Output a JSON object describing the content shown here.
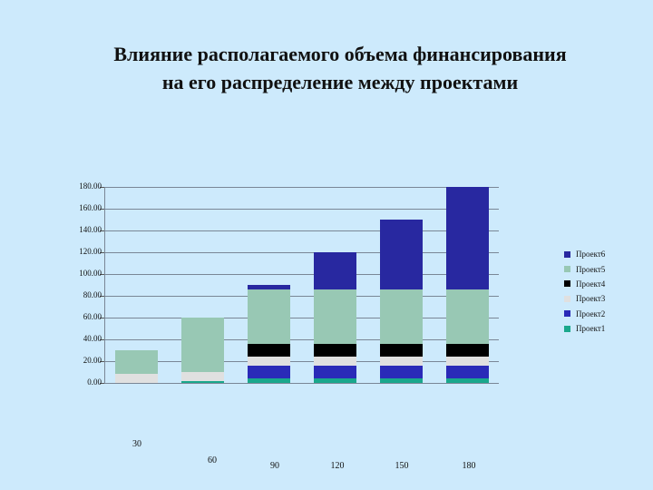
{
  "title_line1": "Влияние располагаемого объема финансирования",
  "title_line2": "на его распределение между проектами",
  "y_ticks": [
    "180.00",
    "160.00",
    "140.00",
    "120.00",
    "100.00",
    "80.00",
    "60.00",
    "40.00",
    "20.00",
    "0.00"
  ],
  "x_labels": [
    "30",
    "60",
    "90",
    "120",
    "150",
    "180"
  ],
  "legend": [
    {
      "label": "Проект6",
      "color": "#2828a0"
    },
    {
      "label": "Проект5",
      "color": "#98c8b4"
    },
    {
      "label": "Проект4",
      "color": "#000000"
    },
    {
      "label": "Проект3",
      "color": "#e0e0e0"
    },
    {
      "label": "Проект2",
      "color": "#2a2ab8"
    },
    {
      "label": "Проект1",
      "color": "#1aa88c"
    }
  ],
  "chart_data": {
    "type": "bar",
    "stacked": true,
    "title": "Влияние располагаемого объема финансирования на его распределение между проектами",
    "xlabel": "",
    "ylabel": "",
    "ylim": [
      0,
      180
    ],
    "grid": true,
    "legend_position": "right",
    "categories": [
      "30",
      "60",
      "90",
      "120",
      "150",
      "180"
    ],
    "series": [
      {
        "name": "Проект1",
        "color": "#1aa88c",
        "values": [
          0,
          2,
          4,
          4,
          4,
          4
        ]
      },
      {
        "name": "Проект2",
        "color": "#2a2ab8",
        "values": [
          0,
          0,
          12,
          12,
          12,
          12
        ]
      },
      {
        "name": "Проект3",
        "color": "#e0e0e0",
        "values": [
          8,
          8,
          8,
          8,
          8,
          8
        ]
      },
      {
        "name": "Проект4",
        "color": "#000000",
        "values": [
          0,
          0,
          12,
          12,
          12,
          12
        ]
      },
      {
        "name": "Проект5",
        "color": "#98c8b4",
        "values": [
          22,
          50,
          50,
          50,
          50,
          50
        ]
      },
      {
        "name": "Проект6",
        "color": "#2828a0",
        "values": [
          0,
          0,
          4,
          34,
          64,
          94
        ]
      }
    ]
  }
}
